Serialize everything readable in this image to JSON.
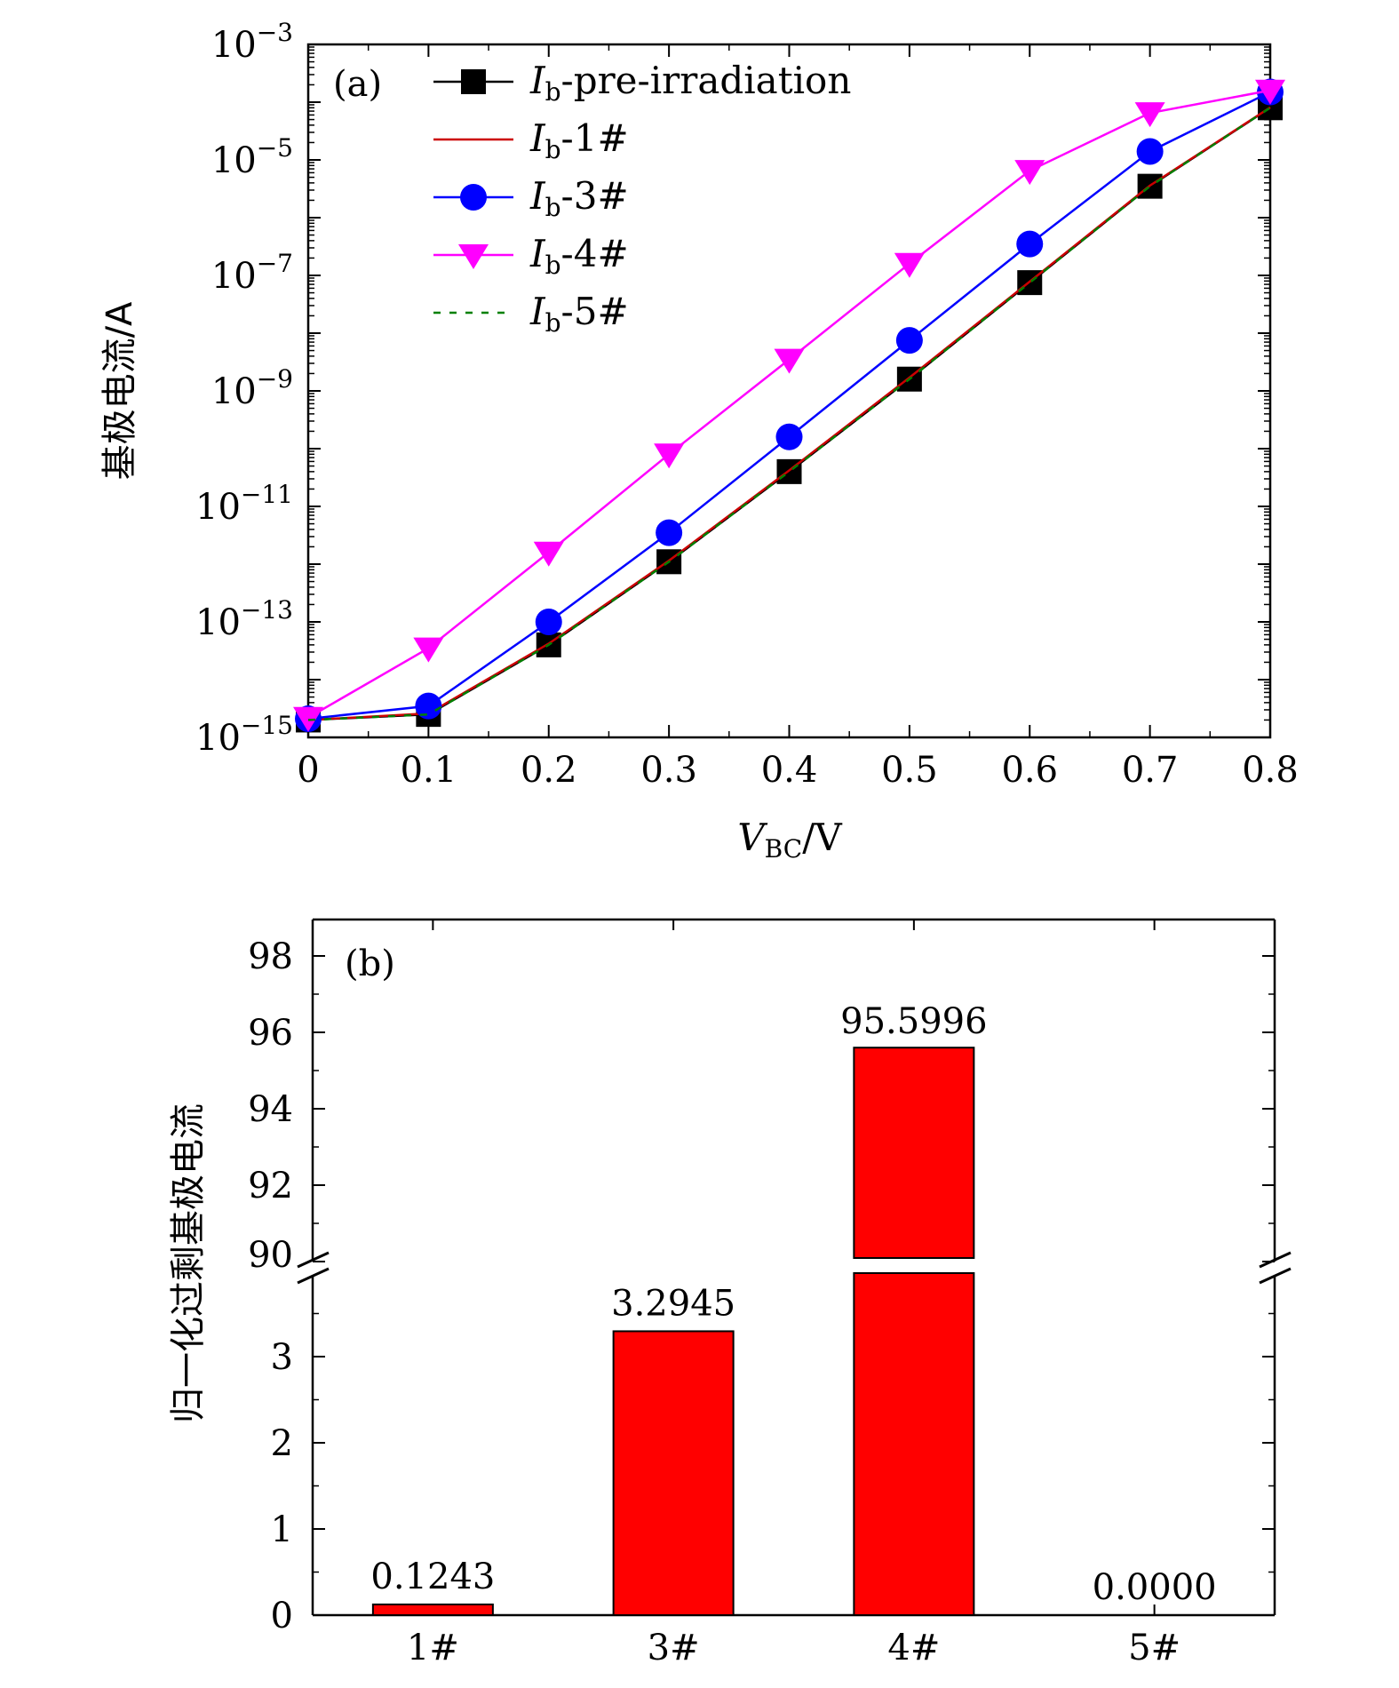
{
  "chart_data": [
    {
      "type": "line",
      "panel_label": "(a)",
      "xlabel": "V_BC/V",
      "xlabel_main": "V",
      "xlabel_sub": "BC",
      "xlabel_tail": "/V",
      "ylabel": "基极电流/A",
      "yscale": "log",
      "xlim": [
        0,
        0.8
      ],
      "ylim": [
        1e-15,
        0.001
      ],
      "x_tick_labels": [
        "0",
        "0.1",
        "0.2",
        "0.3",
        "0.4",
        "0.5",
        "0.6",
        "0.7",
        "0.8"
      ],
      "y_ticks": [
        {
          "value": 0.001,
          "base": "10",
          "exp": "−3"
        },
        {
          "value": 1e-05,
          "base": "10",
          "exp": "−5"
        },
        {
          "value": 1e-07,
          "base": "10",
          "exp": "−7"
        },
        {
          "value": 1e-09,
          "base": "10",
          "exp": "−9"
        },
        {
          "value": 1e-11,
          "base": "10",
          "exp": "−11"
        },
        {
          "value": 1e-13,
          "base": "10",
          "exp": "−13"
        },
        {
          "value": 1e-15,
          "base": "10",
          "exp": "−15"
        }
      ],
      "x": [
        0,
        0.1,
        0.2,
        0.3,
        0.4,
        0.5,
        0.6,
        0.7,
        0.8
      ],
      "series": [
        {
          "name": "Ib-pre-irradiation",
          "label_main": "I",
          "label_sub": "b",
          "label_tail": "-pre-irradiation",
          "color": "#000000",
          "marker": "square",
          "style": "solid",
          "values": [
            2e-15,
            2.5e-15,
            4e-14,
            1.1e-12,
            4e-11,
            1.6e-09,
            7.5e-08,
            3.5e-06,
            8e-05
          ]
        },
        {
          "name": "Ib-1#",
          "label_main": "I",
          "label_sub": "b",
          "label_tail": "-1#",
          "color": "#cc0000",
          "marker": "none",
          "style": "solid",
          "values": [
            2e-15,
            2.6e-15,
            4.2e-14,
            1.15e-12,
            4.2e-11,
            1.7e-09,
            7.8e-08,
            3.6e-06,
            8.1e-05
          ]
        },
        {
          "name": "Ib-3#",
          "label_main": "I",
          "label_sub": "b",
          "label_tail": "-3#",
          "color": "#0000ff",
          "marker": "circle",
          "style": "solid",
          "values": [
            2.1e-15,
            3.5e-15,
            1e-13,
            3.5e-12,
            1.6e-10,
            7.5e-09,
            3.5e-07,
            1.4e-05,
            0.00015
          ]
        },
        {
          "name": "Ib-4#",
          "label_main": "I",
          "label_sub": "b",
          "label_tail": "-4#",
          "color": "#ff00ff",
          "marker": "triangle-down",
          "style": "solid",
          "values": [
            2.2e-15,
            3.5e-14,
            1.6e-12,
            8e-11,
            3.5e-09,
            1.6e-07,
            6.5e-06,
            6.5e-05,
            0.00016
          ]
        },
        {
          "name": "Ib-5#",
          "label_main": "I",
          "label_sub": "b",
          "label_tail": "-5#",
          "color": "#008000",
          "marker": "none",
          "style": "dashed",
          "values": [
            2e-15,
            2.5e-15,
            4e-14,
            1.1e-12,
            4e-11,
            1.6e-09,
            7.5e-08,
            3.5e-06,
            8e-05
          ]
        }
      ]
    },
    {
      "type": "bar",
      "panel_label": "(b)",
      "xlabel": "",
      "ylabel": "归一化过剩基极电流",
      "categories": [
        "1#",
        "3#",
        "4#",
        "5#"
      ],
      "values": [
        0.1243,
        3.2945,
        95.5996,
        0.0
      ],
      "value_labels": [
        "0.1243",
        "3.2945",
        "95.5996",
        "0.0000"
      ],
      "bar_color": "#ff0000",
      "broken_axis": {
        "lower_range": [
          0,
          4
        ],
        "upper_range": [
          90,
          99
        ]
      },
      "lower_tick_labels": [
        "0",
        "1",
        "2",
        "3"
      ],
      "upper_tick_labels": [
        "90",
        "92",
        "94",
        "96",
        "98"
      ],
      "break_tick_label": "90"
    }
  ]
}
